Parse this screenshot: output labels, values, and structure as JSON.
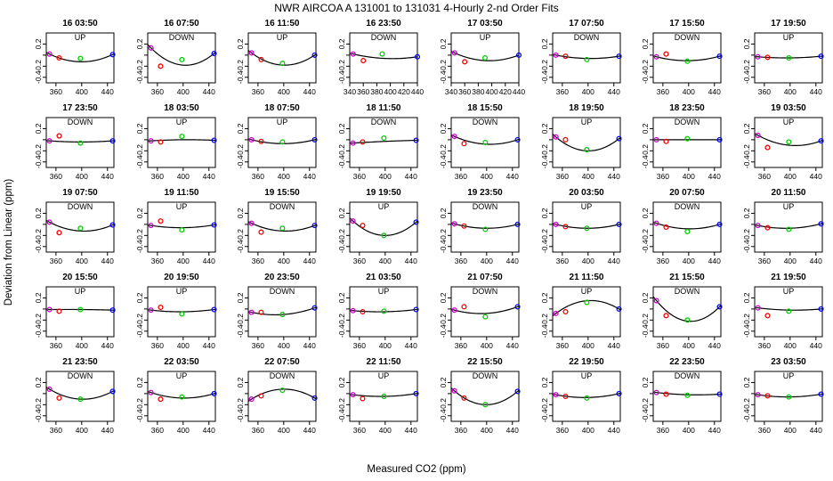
{
  "chart_data": {
    "type": "scatter",
    "title": "NWR   AIRCOA A   131001 to 131031   4-Hourly 2-nd Order Fits",
    "xlabel": "Measured CO2 (ppm)",
    "ylabel": "Deviation from Linear (ppm)",
    "ylim": [
      -0.5,
      0.4
    ],
    "yticks": [
      "-0.4",
      "-0.2",
      "0.0",
      "0.2"
    ],
    "xlim_default": [
      345,
      450
    ],
    "xticks_default": [
      "360",
      "400",
      "440"
    ],
    "xlim_alt": [
      340,
      440
    ],
    "xticks_alt": [
      "340",
      "360",
      "380",
      "400",
      "420",
      "440"
    ],
    "colors": {
      "p1": "#cc00cc",
      "p2": "#ee0000",
      "p3": "#00cc00",
      "p4": "#0000ee",
      "line": "#000000"
    },
    "panels": [
      {
        "title": "16 03:50",
        "dir": "UP",
        "c": -0.12,
        "pts": [
          [
            350,
            0.02
          ],
          [
            365,
            -0.05
          ],
          [
            398,
            -0.06
          ],
          [
            448,
            0.01
          ]
        ]
      },
      {
        "title": "16 07:50",
        "dir": "DOWN",
        "c": -0.18,
        "pts": [
          [
            350,
            0.13
          ],
          [
            365,
            -0.2
          ],
          [
            398,
            -0.08
          ],
          [
            448,
            0.03
          ]
        ]
      },
      {
        "title": "16 11:50",
        "dir": "UP",
        "c": -0.18,
        "pts": [
          [
            350,
            0.04
          ],
          [
            365,
            -0.08
          ],
          [
            398,
            -0.15
          ],
          [
            448,
            0.0
          ]
        ]
      },
      {
        "title": "16 23:50",
        "dir": "DOWN",
        "c": -0.06,
        "alt": true,
        "pts": [
          [
            345,
            0.02
          ],
          [
            360,
            -0.1
          ],
          [
            388,
            0.02
          ],
          [
            440,
            -0.03
          ]
        ]
      },
      {
        "title": "17 03:50",
        "dir": "UP",
        "c": -0.1,
        "alt": true,
        "pts": [
          [
            345,
            0.04
          ],
          [
            360,
            -0.12
          ],
          [
            390,
            -0.05
          ],
          [
            440,
            0.0
          ]
        ]
      },
      {
        "title": "17 07:50",
        "dir": "DOWN",
        "c": -0.06,
        "pts": [
          [
            350,
            0.0
          ],
          [
            365,
            -0.02
          ],
          [
            398,
            -0.08
          ],
          [
            448,
            -0.02
          ]
        ]
      },
      {
        "title": "17 15:50",
        "dir": "DOWN",
        "c": -0.1,
        "pts": [
          [
            350,
            -0.03
          ],
          [
            365,
            0.02
          ],
          [
            398,
            -0.11
          ],
          [
            448,
            -0.02
          ]
        ]
      },
      {
        "title": "17 19:50",
        "dir": "UP",
        "c": -0.05,
        "pts": [
          [
            350,
            -0.03
          ],
          [
            365,
            -0.04
          ],
          [
            398,
            -0.05
          ],
          [
            448,
            -0.02
          ]
        ]
      },
      {
        "title": "17 23:50",
        "dir": "DOWN",
        "c": -0.04,
        "pts": [
          [
            350,
            -0.02
          ],
          [
            365,
            0.07
          ],
          [
            398,
            -0.06
          ],
          [
            448,
            -0.02
          ]
        ]
      },
      {
        "title": "18 03:50",
        "dir": "UP",
        "c": 0.0,
        "pts": [
          [
            350,
            -0.02
          ],
          [
            365,
            -0.04
          ],
          [
            398,
            0.06
          ],
          [
            448,
            -0.01
          ]
        ]
      },
      {
        "title": "18 07:50",
        "dir": "UP",
        "c": -0.07,
        "pts": [
          [
            350,
            0.0
          ],
          [
            365,
            -0.03
          ],
          [
            398,
            -0.04
          ],
          [
            448,
            0.0
          ]
        ]
      },
      {
        "title": "18 11:50",
        "dir": "DOWN",
        "c": -0.03,
        "pts": [
          [
            350,
            -0.06
          ],
          [
            365,
            -0.04
          ],
          [
            398,
            0.03
          ],
          [
            448,
            -0.01
          ]
        ]
      },
      {
        "title": "18 15:50",
        "dir": "DOWN",
        "c": -0.08,
        "pts": [
          [
            350,
            0.06
          ],
          [
            365,
            -0.07
          ],
          [
            398,
            -0.05
          ],
          [
            448,
            0.0
          ]
        ]
      },
      {
        "title": "18 19:50",
        "dir": "UP",
        "c": -0.2,
        "pts": [
          [
            350,
            0.05
          ],
          [
            365,
            0.0
          ],
          [
            398,
            -0.18
          ],
          [
            448,
            0.02
          ]
        ]
      },
      {
        "title": "18 23:50",
        "dir": "DOWN",
        "c": 0.0,
        "pts": [
          [
            350,
            0.0
          ],
          [
            365,
            -0.03
          ],
          [
            398,
            0.02
          ],
          [
            448,
            0.0
          ]
        ]
      },
      {
        "title": "19 03:50",
        "dir": "UP",
        "c": -0.1,
        "pts": [
          [
            350,
            0.08
          ],
          [
            365,
            -0.14
          ],
          [
            398,
            -0.04
          ],
          [
            448,
            -0.02
          ]
        ]
      },
      {
        "title": "19 07:50",
        "dir": "DOWN",
        "c": -0.12,
        "pts": [
          [
            350,
            0.04
          ],
          [
            365,
            -0.15
          ],
          [
            398,
            -0.07
          ],
          [
            448,
            -0.01
          ]
        ]
      },
      {
        "title": "19 11:50",
        "dir": "UP",
        "c": -0.06,
        "pts": [
          [
            350,
            -0.02
          ],
          [
            365,
            0.06
          ],
          [
            398,
            -0.1
          ],
          [
            448,
            -0.01
          ]
        ]
      },
      {
        "title": "19 15:50",
        "dir": "DOWN",
        "c": -0.12,
        "pts": [
          [
            350,
            0.02
          ],
          [
            365,
            -0.14
          ],
          [
            398,
            -0.07
          ],
          [
            448,
            -0.02
          ]
        ]
      },
      {
        "title": "19 19:50",
        "dir": "UP",
        "c": -0.2,
        "pts": [
          [
            350,
            0.06
          ],
          [
            365,
            -0.02
          ],
          [
            398,
            -0.2
          ],
          [
            448,
            0.04
          ]
        ]
      },
      {
        "title": "19 23:50",
        "dir": "DOWN",
        "c": -0.07,
        "pts": [
          [
            350,
            0.01
          ],
          [
            365,
            -0.03
          ],
          [
            398,
            -0.09
          ],
          [
            448,
            0.0
          ]
        ]
      },
      {
        "title": "20 03:50",
        "dir": "UP",
        "c": -0.07,
        "pts": [
          [
            350,
            0.0
          ],
          [
            365,
            -0.04
          ],
          [
            398,
            -0.07
          ],
          [
            448,
            0.0
          ]
        ]
      },
      {
        "title": "20 07:50",
        "dir": "DOWN",
        "c": -0.08,
        "pts": [
          [
            350,
            0.02
          ],
          [
            365,
            -0.05
          ],
          [
            398,
            -0.13
          ],
          [
            448,
            0.0
          ]
        ]
      },
      {
        "title": "20 11:50",
        "dir": "UP",
        "c": -0.07,
        "pts": [
          [
            350,
            -0.02
          ],
          [
            365,
            -0.06
          ],
          [
            398,
            -0.09
          ],
          [
            448,
            0.01
          ]
        ]
      },
      {
        "title": "20 15:50",
        "dir": "UP",
        "c": -0.01,
        "pts": [
          [
            350,
            -0.01
          ],
          [
            365,
            -0.04
          ],
          [
            398,
            -0.01
          ],
          [
            448,
            -0.02
          ]
        ]
      },
      {
        "title": "20 19:50",
        "dir": "UP",
        "c": -0.05,
        "pts": [
          [
            350,
            -0.02
          ],
          [
            365,
            0.03
          ],
          [
            398,
            -0.09
          ],
          [
            448,
            -0.01
          ]
        ]
      },
      {
        "title": "20 23:50",
        "dir": "DOWN",
        "c": -0.1,
        "pts": [
          [
            350,
            -0.06
          ],
          [
            365,
            -0.06
          ],
          [
            398,
            -0.1
          ],
          [
            448,
            0.02
          ]
        ]
      },
      {
        "title": "21 03:50",
        "dir": "UP",
        "c": -0.05,
        "pts": [
          [
            350,
            -0.03
          ],
          [
            365,
            -0.05
          ],
          [
            398,
            -0.04
          ],
          [
            448,
            -0.01
          ]
        ]
      },
      {
        "title": "21 07:50",
        "dir": "DOWN",
        "c": -0.08,
        "pts": [
          [
            350,
            -0.02
          ],
          [
            365,
            0.04
          ],
          [
            398,
            -0.14
          ],
          [
            448,
            0.04
          ]
        ]
      },
      {
        "title": "21 11:50",
        "dir": "UP",
        "c": 0.15,
        "pts": [
          [
            350,
            -0.08
          ],
          [
            365,
            -0.05
          ],
          [
            398,
            0.12
          ],
          [
            448,
            0.0
          ]
        ]
      },
      {
        "title": "21 15:50",
        "dir": "DOWN",
        "c": -0.22,
        "pts": [
          [
            350,
            0.15
          ],
          [
            365,
            -0.12
          ],
          [
            398,
            -0.2
          ],
          [
            448,
            0.04
          ]
        ]
      },
      {
        "title": "21 19:50",
        "dir": "UP",
        "c": -0.02,
        "pts": [
          [
            350,
            0.02
          ],
          [
            365,
            -0.12
          ],
          [
            398,
            -0.04
          ],
          [
            448,
            0.0
          ]
        ]
      },
      {
        "title": "21 23:50",
        "dir": "DOWN",
        "c": -0.1,
        "pts": [
          [
            350,
            0.08
          ],
          [
            365,
            -0.08
          ],
          [
            398,
            -0.1
          ],
          [
            448,
            0.04
          ]
        ]
      },
      {
        "title": "22 03:50",
        "dir": "UP",
        "c": -0.08,
        "pts": [
          [
            350,
            0.02
          ],
          [
            365,
            -0.1
          ],
          [
            398,
            -0.06
          ],
          [
            448,
            0.0
          ]
        ]
      },
      {
        "title": "22 07:50",
        "dir": "DOWN",
        "c": 0.08,
        "pts": [
          [
            350,
            -0.1
          ],
          [
            365,
            -0.04
          ],
          [
            398,
            0.06
          ],
          [
            448,
            -0.08
          ]
        ]
      },
      {
        "title": "22 11:50",
        "dir": "UP",
        "c": -0.05,
        "pts": [
          [
            350,
            -0.02
          ],
          [
            365,
            -0.09
          ],
          [
            398,
            -0.05
          ],
          [
            448,
            0.0
          ]
        ]
      },
      {
        "title": "22 15:50",
        "dir": "DOWN",
        "c": -0.2,
        "pts": [
          [
            350,
            0.05
          ],
          [
            365,
            -0.08
          ],
          [
            398,
            -0.2
          ],
          [
            448,
            0.04
          ]
        ]
      },
      {
        "title": "22 19:50",
        "dir": "UP",
        "c": -0.07,
        "pts": [
          [
            350,
            -0.02
          ],
          [
            365,
            -0.05
          ],
          [
            398,
            -0.08
          ],
          [
            448,
            0.0
          ]
        ]
      },
      {
        "title": "22 23:50",
        "dir": "DOWN",
        "c": -0.02,
        "pts": [
          [
            350,
            0.02
          ],
          [
            365,
            -0.01
          ],
          [
            398,
            -0.03
          ],
          [
            448,
            -0.01
          ]
        ]
      },
      {
        "title": "23 03:50",
        "dir": "UP",
        "c": -0.06,
        "pts": [
          [
            350,
            -0.02
          ],
          [
            365,
            -0.04
          ],
          [
            398,
            -0.06
          ],
          [
            448,
            -0.01
          ]
        ]
      }
    ]
  }
}
